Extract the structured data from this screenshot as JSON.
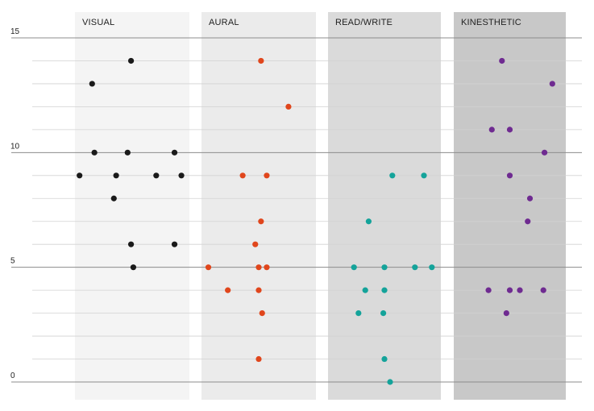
{
  "chart_data": {
    "type": "scatter",
    "categories": [
      "VISUAL",
      "AURAL",
      "READ/WRITE",
      "KINESTHETIC"
    ],
    "ylim": [
      0,
      15
    ],
    "y_tick_labels": [
      "0",
      "5",
      "10",
      "15"
    ],
    "grid": true,
    "series": [
      {
        "color": "#1a1a1a",
        "points": [
          {
            "offset": 0.49,
            "y": 14
          },
          {
            "offset": 0.15,
            "y": 13
          },
          {
            "offset": 0.17,
            "y": 10
          },
          {
            "offset": 0.46,
            "y": 10
          },
          {
            "offset": 0.87,
            "y": 10
          },
          {
            "offset": 0.04,
            "y": 9
          },
          {
            "offset": 0.36,
            "y": 9
          },
          {
            "offset": 0.71,
            "y": 9
          },
          {
            "offset": 0.93,
            "y": 9
          },
          {
            "offset": 0.34,
            "y": 8
          },
          {
            "offset": 0.49,
            "y": 6
          },
          {
            "offset": 0.87,
            "y": 6
          },
          {
            "offset": 0.51,
            "y": 5
          }
        ]
      },
      {
        "color": "#e0461c",
        "points": [
          {
            "offset": 0.52,
            "y": 14
          },
          {
            "offset": 0.76,
            "y": 12
          },
          {
            "offset": 0.36,
            "y": 9
          },
          {
            "offset": 0.57,
            "y": 9
          },
          {
            "offset": 0.52,
            "y": 7
          },
          {
            "offset": 0.47,
            "y": 6
          },
          {
            "offset": 0.06,
            "y": 5
          },
          {
            "offset": 0.5,
            "y": 5
          },
          {
            "offset": 0.57,
            "y": 5
          },
          {
            "offset": 0.23,
            "y": 4
          },
          {
            "offset": 0.5,
            "y": 4
          },
          {
            "offset": 0.53,
            "y": 3
          },
          {
            "offset": 0.5,
            "y": 1
          }
        ]
      },
      {
        "color": "#14a39a",
        "points": [
          {
            "offset": 0.57,
            "y": 9
          },
          {
            "offset": 0.85,
            "y": 9
          },
          {
            "offset": 0.36,
            "y": 7
          },
          {
            "offset": 0.23,
            "y": 5
          },
          {
            "offset": 0.5,
            "y": 5
          },
          {
            "offset": 0.77,
            "y": 5
          },
          {
            "offset": 0.92,
            "y": 5
          },
          {
            "offset": 0.33,
            "y": 4
          },
          {
            "offset": 0.5,
            "y": 4
          },
          {
            "offset": 0.27,
            "y": 3
          },
          {
            "offset": 0.49,
            "y": 3
          },
          {
            "offset": 0.5,
            "y": 1
          },
          {
            "offset": 0.55,
            "y": 0
          }
        ]
      },
      {
        "color": "#6f2b91",
        "points": [
          {
            "offset": 0.43,
            "y": 14
          },
          {
            "offset": 0.88,
            "y": 13
          },
          {
            "offset": 0.34,
            "y": 11
          },
          {
            "offset": 0.5,
            "y": 11
          },
          {
            "offset": 0.81,
            "y": 10
          },
          {
            "offset": 0.5,
            "y": 9
          },
          {
            "offset": 0.68,
            "y": 8
          },
          {
            "offset": 0.66,
            "y": 7
          },
          {
            "offset": 0.31,
            "y": 4
          },
          {
            "offset": 0.5,
            "y": 4
          },
          {
            "offset": 0.59,
            "y": 4
          },
          {
            "offset": 0.8,
            "y": 4
          },
          {
            "offset": 0.47,
            "y": 3
          }
        ]
      }
    ],
    "column_backgrounds": [
      "#f4f4f4",
      "#ebebeb",
      "#dadada",
      "#c8c8c8"
    ]
  }
}
